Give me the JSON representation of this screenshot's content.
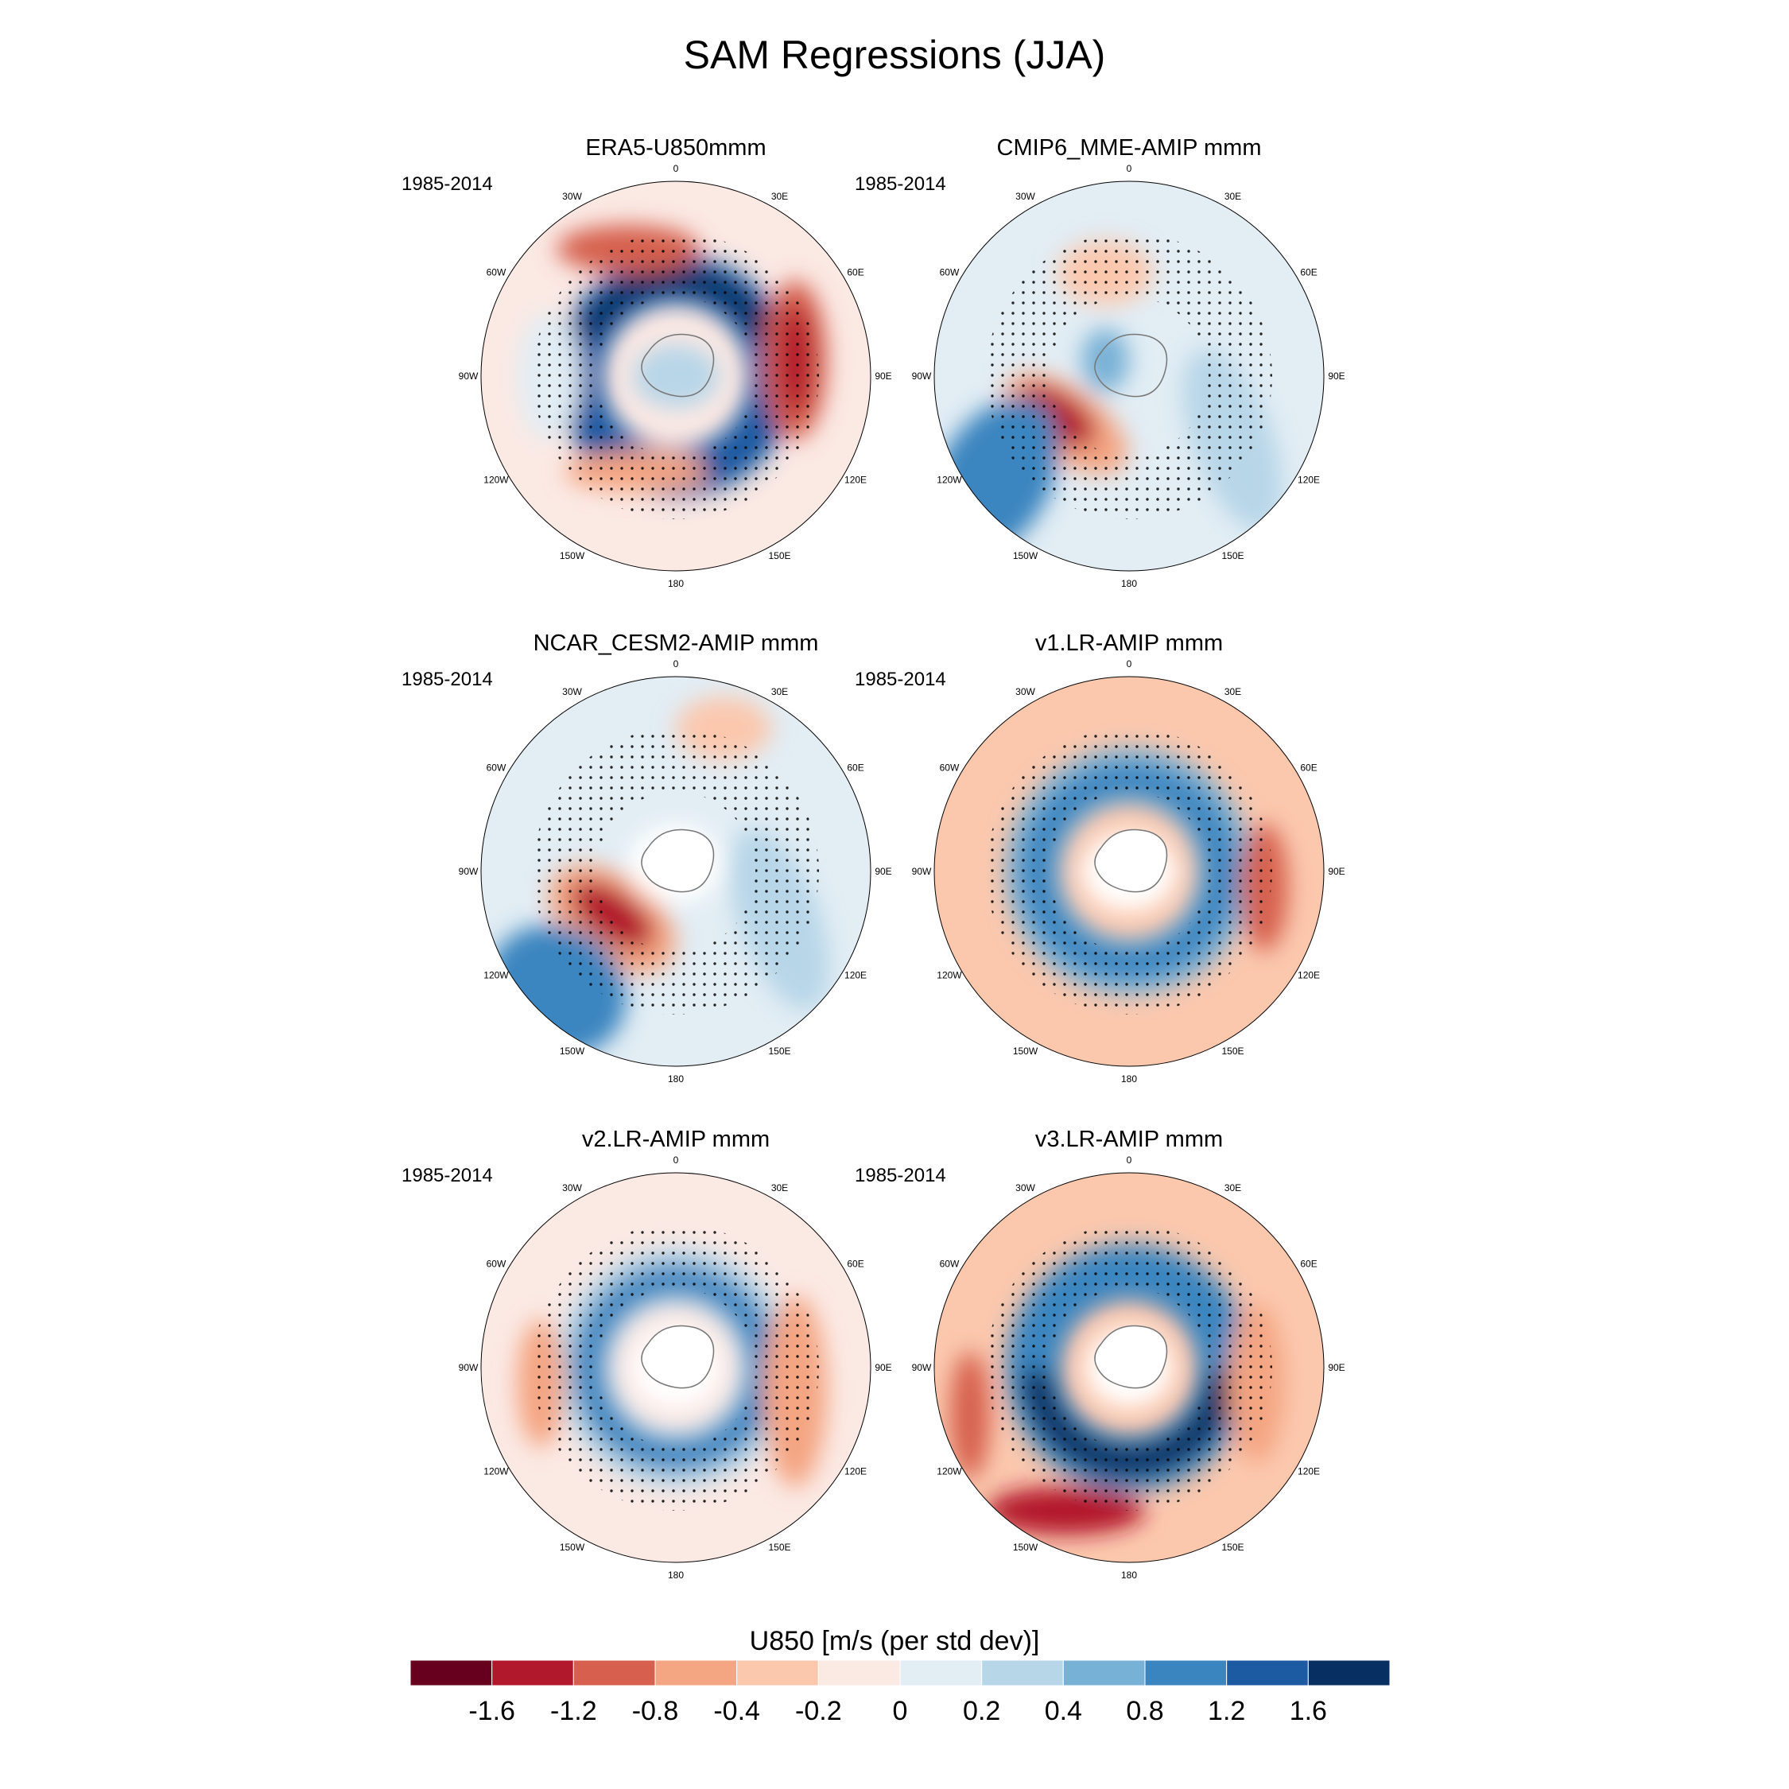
{
  "title": "SAM Regressions (JJA)",
  "colorbar": {
    "title": "U850 [m/s (per std dev)]",
    "tick_labels": [
      "-1.6",
      "-1.2",
      "-0.8",
      "-0.4",
      "-0.2",
      "0",
      "0.2",
      "0.4",
      "0.8",
      "1.2",
      "1.6"
    ],
    "colors": [
      "#67001f",
      "#b2182b",
      "#d6604d",
      "#f4a582",
      "#fbc8ae",
      "#fbe9e4",
      "#e2edf4",
      "#b7d6e8",
      "#78b1d6",
      "#3a85c0",
      "#1c5aa2",
      "#072f61"
    ]
  },
  "longitude_labels": [
    "0",
    "30E",
    "60E",
    "90E",
    "120E",
    "150E",
    "180",
    "150W",
    "120W",
    "90W",
    "60W",
    "30W"
  ],
  "panels": [
    {
      "title": "ERA5-U850mmm",
      "period": "1985-2014"
    },
    {
      "title": "CMIP6_MME-AMIP  mmm",
      "period": "1985-2014"
    },
    {
      "title": "NCAR_CESM2-AMIP  mmm",
      "period": "1985-2014"
    },
    {
      "title": "v1.LR-AMIP  mmm",
      "period": "1985-2014"
    },
    {
      "title": "v2.LR-AMIP  mmm",
      "period": "1985-2014"
    },
    {
      "title": "v3.LR-AMIP  mmm",
      "period": "1985-2014"
    }
  ]
}
